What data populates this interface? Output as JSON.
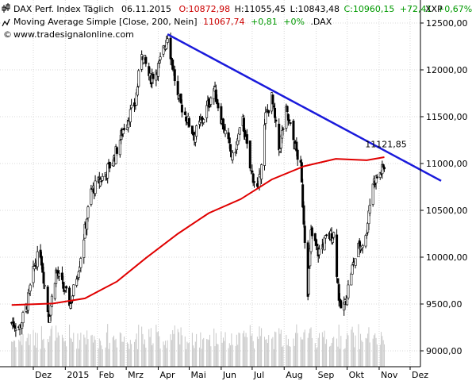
{
  "chart_data": {
    "type": "candlestick",
    "instrument_label": "DAX Perf. Index Täglich",
    "legend": {
      "line1": {
        "name": "DAX Perf. Index Täglich",
        "date": "06.11.2015",
        "open": "O:10872,98",
        "high": "H:11055,45",
        "low": "L:10843,48",
        "close": "C:10960,15",
        "change": "+72,41",
        "change_pct": "+0,67%"
      },
      "line2": {
        "name": "Moving Average Simple [Close, 200, Nein]",
        "value": "11067,74",
        "change": "+0,81",
        "change_pct": "+0%",
        "symbol": ".DAX"
      },
      "line3": "www.tradesignalonline.com"
    },
    "currency_label": "XXP",
    "y_axis": {
      "min": 8850,
      "max": 12650,
      "ticks": [
        {
          "value": 9000,
          "label": "9000,00"
        },
        {
          "value": 9500,
          "label": "9500,00"
        },
        {
          "value": 10000,
          "label": "10000,00"
        },
        {
          "value": 10500,
          "label": "10500,00"
        },
        {
          "value": 11000,
          "label": "11000,00"
        },
        {
          "value": 11500,
          "label": "11500,00"
        },
        {
          "value": 12000,
          "label": "12000,00"
        },
        {
          "value": 12500,
          "label": "12500,00"
        }
      ]
    },
    "x_axis": {
      "start": "2014-11-10",
      "end": "2015-12-31",
      "ticks": [
        {
          "date": "2014-12-01",
          "label": "Dez"
        },
        {
          "date": "2015-01-01",
          "label": "2015"
        },
        {
          "date": "2015-02-01",
          "label": "Feb"
        },
        {
          "date": "2015-03-01",
          "label": "Mrz"
        },
        {
          "date": "2015-04-01",
          "label": "Apr"
        },
        {
          "date": "2015-05-01",
          "label": "Mai"
        },
        {
          "date": "2015-06-01",
          "label": "Jun"
        },
        {
          "date": "2015-07-01",
          "label": "Jul"
        },
        {
          "date": "2015-08-01",
          "label": "Aug"
        },
        {
          "date": "2015-09-01",
          "label": "Sep"
        },
        {
          "date": "2015-10-01",
          "label": "Okt"
        },
        {
          "date": "2015-11-01",
          "label": "Nov"
        },
        {
          "date": "2015-12-01",
          "label": "Dez"
        }
      ]
    },
    "price_keypoints": [
      {
        "date": "2014-11-10",
        "value": 9300
      },
      {
        "date": "2014-11-18",
        "value": 9250
      },
      {
        "date": "2014-11-25",
        "value": 9500
      },
      {
        "date": "2014-12-03",
        "value": 9950
      },
      {
        "date": "2014-12-08",
        "value": 10050
      },
      {
        "date": "2014-12-16",
        "value": 9350
      },
      {
        "date": "2014-12-23",
        "value": 9850
      },
      {
        "date": "2015-01-06",
        "value": 9500
      },
      {
        "date": "2015-01-15",
        "value": 9950
      },
      {
        "date": "2015-01-26",
        "value": 10700
      },
      {
        "date": "2015-02-06",
        "value": 10850
      },
      {
        "date": "2015-02-17",
        "value": 11050
      },
      {
        "date": "2015-02-27",
        "value": 11400
      },
      {
        "date": "2015-03-10",
        "value": 11650
      },
      {
        "date": "2015-03-16",
        "value": 12200
      },
      {
        "date": "2015-03-24",
        "value": 11900
      },
      {
        "date": "2015-04-02",
        "value": 12050
      },
      {
        "date": "2015-04-10",
        "value": 12380
      },
      {
        "date": "2015-04-20",
        "value": 11700
      },
      {
        "date": "2015-04-30",
        "value": 11450
      },
      {
        "date": "2015-05-06",
        "value": 11300
      },
      {
        "date": "2015-05-15",
        "value": 11500
      },
      {
        "date": "2015-05-25",
        "value": 11800
      },
      {
        "date": "2015-06-03",
        "value": 11400
      },
      {
        "date": "2015-06-12",
        "value": 11050
      },
      {
        "date": "2015-06-22",
        "value": 11450
      },
      {
        "date": "2015-06-29",
        "value": 10950
      },
      {
        "date": "2015-07-07",
        "value": 10700
      },
      {
        "date": "2015-07-14",
        "value": 11500
      },
      {
        "date": "2015-07-20",
        "value": 11700
      },
      {
        "date": "2015-07-27",
        "value": 11150
      },
      {
        "date": "2015-08-03",
        "value": 11550
      },
      {
        "date": "2015-08-10",
        "value": 11250
      },
      {
        "date": "2015-08-17",
        "value": 10950
      },
      {
        "date": "2015-08-24",
        "value": 9650
      },
      {
        "date": "2015-08-27",
        "value": 10250
      },
      {
        "date": "2015-09-03",
        "value": 10050
      },
      {
        "date": "2015-09-11",
        "value": 10200
      },
      {
        "date": "2015-09-18",
        "value": 10250
      },
      {
        "date": "2015-09-24",
        "value": 9450
      },
      {
        "date": "2015-09-29",
        "value": 9500
      },
      {
        "date": "2015-10-05",
        "value": 9850
      },
      {
        "date": "2015-10-12",
        "value": 10100
      },
      {
        "date": "2015-10-19",
        "value": 10200
      },
      {
        "date": "2015-10-22",
        "value": 10500
      },
      {
        "date": "2015-10-26",
        "value": 10800
      },
      {
        "date": "2015-10-30",
        "value": 10850
      },
      {
        "date": "2015-11-06",
        "value": 10960
      }
    ],
    "series": [
      {
        "name": "Moving Average Simple [Close, 200, Nein]",
        "color": "#e00000",
        "points": [
          {
            "date": "2014-11-10",
            "value": 9490
          },
          {
            "date": "2014-12-20",
            "value": 9505
          },
          {
            "date": "2015-01-20",
            "value": 9560
          },
          {
            "date": "2015-02-20",
            "value": 9740
          },
          {
            "date": "2015-03-20",
            "value": 9990
          },
          {
            "date": "2015-04-20",
            "value": 10250
          },
          {
            "date": "2015-05-20",
            "value": 10470
          },
          {
            "date": "2015-06-20",
            "value": 10620
          },
          {
            "date": "2015-07-20",
            "value": 10830
          },
          {
            "date": "2015-08-20",
            "value": 10970
          },
          {
            "date": "2015-09-20",
            "value": 11050
          },
          {
            "date": "2015-10-20",
            "value": 11035
          },
          {
            "date": "2015-11-06",
            "value": 11068
          }
        ]
      }
    ],
    "trendline": {
      "color": "#1a1adb",
      "start": {
        "date": "2015-04-10",
        "value": 12380
      },
      "end": {
        "date": "2015-12-31",
        "value": 10815
      },
      "label": "11121,85",
      "label_at": {
        "date": "2015-11-06",
        "value": 11121.85
      }
    },
    "colors": {
      "up_body": "#ffffff",
      "down_body": "#000000",
      "wick": "#000000",
      "volume": "#c8c8c8",
      "grid": "#d8d8d8",
      "legend_up": "#009900",
      "legend_down": "#cc0000",
      "legend_blue": "#1a1adb"
    },
    "grid": true,
    "legend_position": "top-left"
  }
}
